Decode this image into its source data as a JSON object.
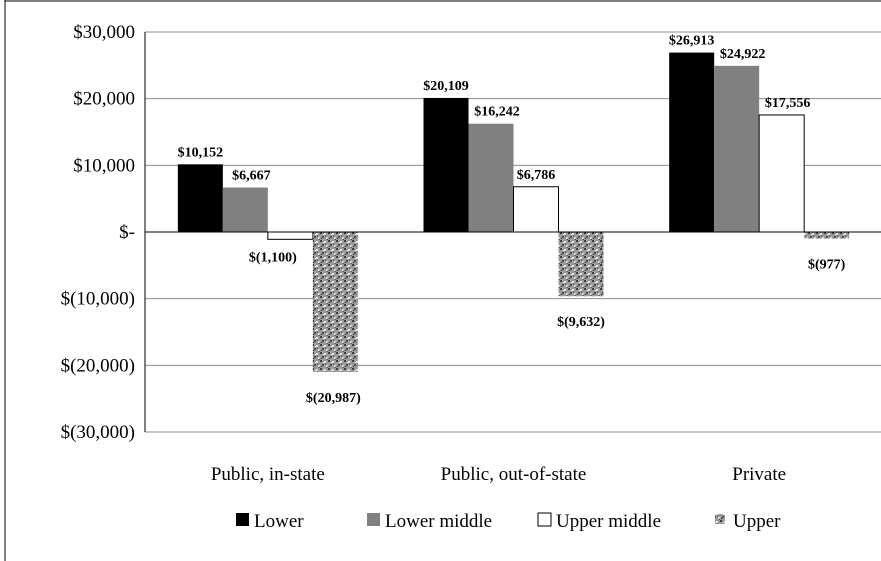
{
  "chart_data": {
    "type": "bar",
    "title": "",
    "xlabel": "",
    "ylabel": "",
    "categories": [
      "Public, in-state",
      "Public, out-of-state",
      "Private"
    ],
    "series": [
      {
        "name": "Lower",
        "values": [
          10152,
          20109,
          26913
        ],
        "labels": [
          "$10,152",
          "$20,109",
          "$26,913"
        ],
        "color": "#000000"
      },
      {
        "name": "Lower middle",
        "values": [
          6667,
          16242,
          24922
        ],
        "labels": [
          "$6,667",
          "$16,242",
          "$24,922"
        ],
        "color": "#808080"
      },
      {
        "name": "Upper middle",
        "values": [
          -1100,
          6786,
          17556
        ],
        "labels": [
          "$(1,100)",
          "$6,786",
          "$17,556"
        ],
        "color": "#ffffff"
      },
      {
        "name": "Upper",
        "values": [
          -20987,
          -9632,
          -977
        ],
        "labels": [
          "$(20,987)",
          "$(9,632)",
          "$(977)"
        ],
        "color": "speckled-gray"
      }
    ],
    "ylim": [
      -30000,
      30000
    ],
    "yticks": [
      30000,
      20000,
      10000,
      0,
      -10000,
      -20000,
      -30000
    ],
    "ytick_labels": [
      "$30,000",
      "$20,000",
      "$10,000",
      "$-",
      "$(10,000)",
      "$(20,000)",
      "$(30,000)"
    ],
    "grid": true,
    "legend_position": "bottom"
  }
}
